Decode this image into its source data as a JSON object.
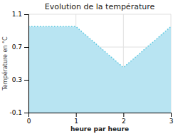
{
  "chart_data": {
    "type": "area",
    "title": "Evolution de la température",
    "x_label": "heure par heure",
    "y_label": "Température en °C",
    "x": [
      0,
      1,
      2,
      3
    ],
    "series": [
      {
        "type": "area",
        "color": "#b8e4f2",
        "values": [
          0.95,
          0.95,
          0.45,
          0.95
        ]
      },
      {
        "type": "line",
        "color": "#5bc8e0",
        "line_style": "dotted",
        "values": [
          0.95,
          0.95,
          0.45,
          0.95
        ]
      }
    ],
    "xlim": [
      0,
      3
    ],
    "ylim": [
      -0.1,
      1.1
    ],
    "xticks": [
      0,
      1,
      2,
      3
    ],
    "yticks": [
      -0.1,
      0.3,
      0.7,
      1.1
    ],
    "grid": true
  }
}
